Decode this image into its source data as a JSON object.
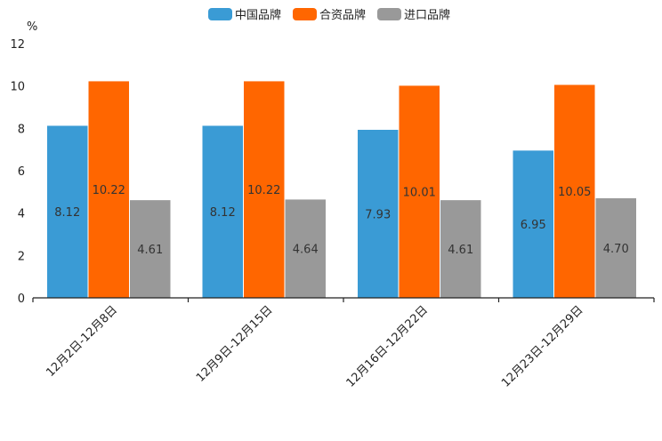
{
  "chart_data": {
    "type": "bar",
    "ylabel": "%",
    "ylim": [
      0,
      12
    ],
    "yticks": [
      0,
      2,
      4,
      6,
      8,
      10,
      12
    ],
    "grid": false,
    "legend_position": "top-center",
    "categories": [
      "12月2日-12月8日",
      "12月9日-12月15日",
      "12月16日-12月22日",
      "12月23日-12月29日"
    ],
    "series": [
      {
        "name": "中国品牌",
        "color": "#3a9bd5",
        "values": [
          8.12,
          8.12,
          7.93,
          6.95
        ]
      },
      {
        "name": "合资品牌",
        "color": "#ff6600",
        "values": [
          10.22,
          10.22,
          10.01,
          10.05
        ]
      },
      {
        "name": "进口品牌",
        "color": "#999999",
        "values": [
          4.61,
          4.64,
          4.61,
          4.7
        ]
      }
    ]
  }
}
